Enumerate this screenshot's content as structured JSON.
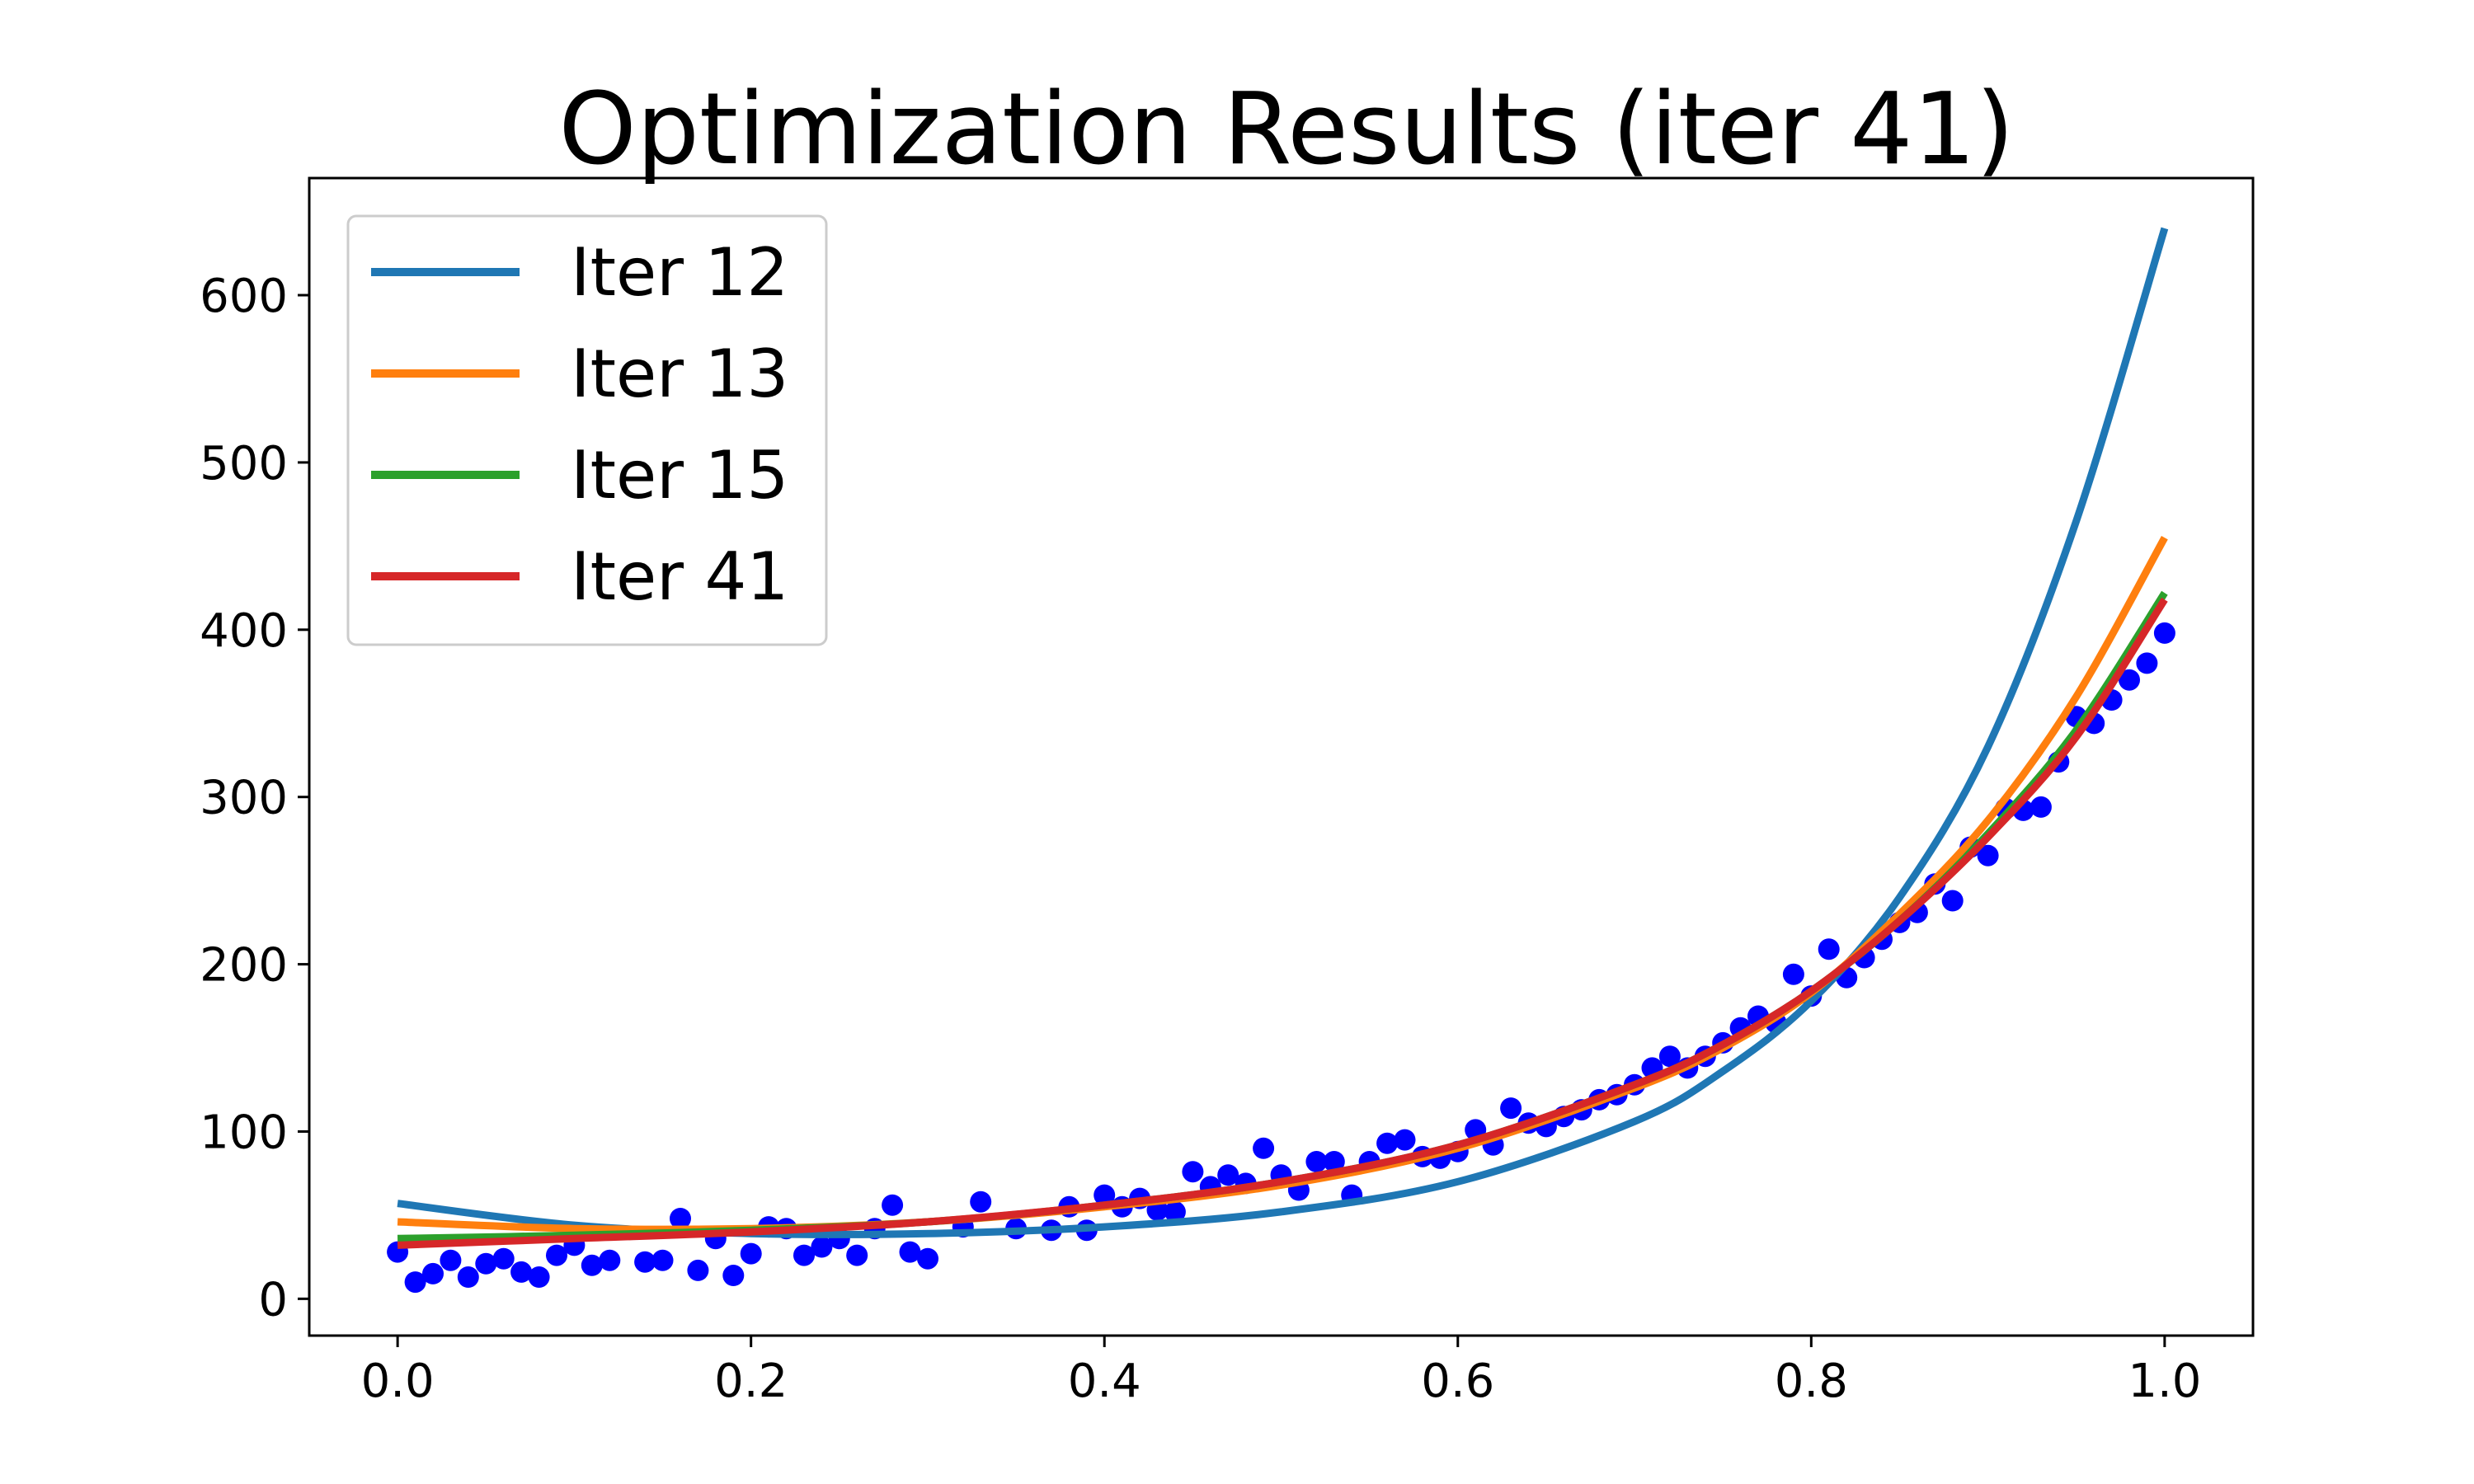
{
  "chart_data": {
    "type": "line",
    "title": "Optimization Results (iter 41)",
    "xlabel": "",
    "ylabel": "",
    "xlim": [
      -0.05,
      1.05
    ],
    "ylim": [
      -22,
      670
    ],
    "x_ticks": [
      0.0,
      0.2,
      0.4,
      0.6,
      0.8,
      1.0
    ],
    "x_tick_labels": [
      "0.0",
      "0.2",
      "0.4",
      "0.6",
      "0.8",
      "1.0"
    ],
    "y_ticks": [
      0,
      100,
      200,
      300,
      400,
      500,
      600
    ],
    "y_tick_labels": [
      "0",
      "100",
      "200",
      "300",
      "400",
      "500",
      "600"
    ],
    "grid": false,
    "legend_position": "top-left",
    "series": [
      {
        "name": "Iter 12",
        "color": "#1f77b4",
        "x": [
          0.0,
          0.1,
          0.2,
          0.3,
          0.4,
          0.5,
          0.6,
          0.7,
          0.75,
          0.8,
          0.85,
          0.9,
          0.95,
          1.0
        ],
        "y": [
          57,
          44,
          39,
          39,
          43,
          52,
          70,
          106,
          136,
          178,
          240,
          330,
          465,
          640
        ]
      },
      {
        "name": "Iter 13",
        "color": "#ff7f0e",
        "x": [
          0.0,
          0.1,
          0.2,
          0.3,
          0.4,
          0.5,
          0.6,
          0.7,
          0.75,
          0.8,
          0.85,
          0.9,
          0.95,
          1.0
        ],
        "y": [
          46,
          42,
          42,
          46,
          55,
          68,
          90,
          126,
          150,
          183,
          230,
          286,
          360,
          455
        ]
      },
      {
        "name": "Iter 15",
        "color": "#2ca02c",
        "x": [
          0.0,
          0.1,
          0.2,
          0.3,
          0.4,
          0.5,
          0.6,
          0.7,
          0.75,
          0.8,
          0.85,
          0.9,
          0.95,
          1.0
        ],
        "y": [
          36,
          38,
          41,
          46,
          56,
          70,
          92,
          128,
          152,
          184,
          226,
          278,
          340,
          422
        ]
      },
      {
        "name": "Iter 41",
        "color": "#d62728",
        "x": [
          0.0,
          0.1,
          0.2,
          0.3,
          0.4,
          0.5,
          0.6,
          0.7,
          0.75,
          0.8,
          0.85,
          0.9,
          0.95,
          1.0
        ],
        "y": [
          32,
          36,
          40,
          46,
          56,
          70,
          92,
          128,
          152,
          184,
          226,
          276,
          336,
          418
        ]
      }
    ],
    "scatter": {
      "color": "#0000ff",
      "points": [
        [
          0.0,
          28
        ],
        [
          0.01,
          10
        ],
        [
          0.02,
          15
        ],
        [
          0.03,
          23
        ],
        [
          0.04,
          13
        ],
        [
          0.05,
          21
        ],
        [
          0.06,
          24
        ],
        [
          0.07,
          16
        ],
        [
          0.08,
          13
        ],
        [
          0.09,
          26
        ],
        [
          0.1,
          32
        ],
        [
          0.11,
          20
        ],
        [
          0.12,
          23
        ],
        [
          0.14,
          22
        ],
        [
          0.15,
          23
        ],
        [
          0.16,
          48
        ],
        [
          0.17,
          17
        ],
        [
          0.18,
          36
        ],
        [
          0.19,
          14
        ],
        [
          0.2,
          27
        ],
        [
          0.21,
          43
        ],
        [
          0.22,
          42
        ],
        [
          0.23,
          26
        ],
        [
          0.24,
          31
        ],
        [
          0.25,
          36
        ],
        [
          0.26,
          26
        ],
        [
          0.27,
          42
        ],
        [
          0.28,
          56
        ],
        [
          0.29,
          28
        ],
        [
          0.3,
          24
        ],
        [
          0.32,
          43
        ],
        [
          0.33,
          58
        ],
        [
          0.35,
          42
        ],
        [
          0.37,
          41
        ],
        [
          0.38,
          55
        ],
        [
          0.39,
          41
        ],
        [
          0.4,
          62
        ],
        [
          0.41,
          55
        ],
        [
          0.42,
          60
        ],
        [
          0.43,
          53
        ],
        [
          0.44,
          52
        ],
        [
          0.45,
          76
        ],
        [
          0.46,
          67
        ],
        [
          0.47,
          74
        ],
        [
          0.48,
          69
        ],
        [
          0.49,
          90
        ],
        [
          0.5,
          74
        ],
        [
          0.51,
          65
        ],
        [
          0.52,
          82
        ],
        [
          0.53,
          82
        ],
        [
          0.54,
          62
        ],
        [
          0.55,
          82
        ],
        [
          0.56,
          93
        ],
        [
          0.57,
          95
        ],
        [
          0.58,
          85
        ],
        [
          0.59,
          84
        ],
        [
          0.6,
          88
        ],
        [
          0.61,
          101
        ],
        [
          0.62,
          92
        ],
        [
          0.63,
          114
        ],
        [
          0.64,
          105
        ],
        [
          0.65,
          103
        ],
        [
          0.66,
          109
        ],
        [
          0.67,
          113
        ],
        [
          0.68,
          119
        ],
        [
          0.69,
          122
        ],
        [
          0.7,
          128
        ],
        [
          0.71,
          138
        ],
        [
          0.72,
          145
        ],
        [
          0.73,
          138
        ],
        [
          0.74,
          145
        ],
        [
          0.75,
          153
        ],
        [
          0.76,
          162
        ],
        [
          0.77,
          169
        ],
        [
          0.78,
          165
        ],
        [
          0.79,
          194
        ],
        [
          0.8,
          181
        ],
        [
          0.81,
          209
        ],
        [
          0.82,
          192
        ],
        [
          0.83,
          204
        ],
        [
          0.84,
          215
        ],
        [
          0.85,
          225
        ],
        [
          0.86,
          231
        ],
        [
          0.87,
          248
        ],
        [
          0.88,
          238
        ],
        [
          0.89,
          270
        ],
        [
          0.9,
          265
        ],
        [
          0.91,
          293
        ],
        [
          0.92,
          292
        ],
        [
          0.93,
          294
        ],
        [
          0.94,
          321
        ],
        [
          0.95,
          348
        ],
        [
          0.96,
          344
        ],
        [
          0.97,
          358
        ],
        [
          0.98,
          370
        ],
        [
          0.99,
          380
        ],
        [
          1.0,
          398
        ]
      ]
    }
  }
}
